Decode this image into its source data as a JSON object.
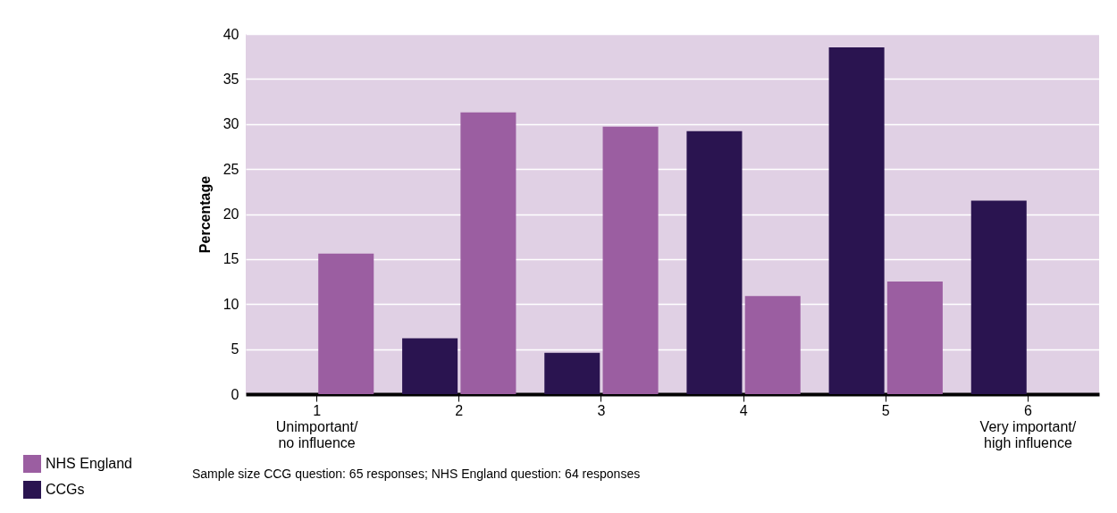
{
  "chart_data": {
    "type": "bar",
    "ylabel": "Percentage",
    "categories": [
      "1\nUnimportant/\nno influence",
      "2",
      "3",
      "4",
      "5",
      "6\nVery important/\nhigh influence"
    ],
    "series": [
      {
        "name": "CCGs",
        "color": "#2a1450",
        "values": [
          null,
          6.2,
          4.6,
          29.2,
          38.5,
          21.5
        ]
      },
      {
        "name": "NHS England",
        "color": "#9b5ea1",
        "values": [
          15.6,
          31.3,
          29.7,
          10.9,
          12.5,
          null
        ]
      }
    ],
    "ylim": [
      0,
      40
    ],
    "yticks": [
      0,
      5,
      10,
      15,
      20,
      25,
      30,
      35,
      40
    ],
    "grid": "y",
    "legend": "bottom left",
    "annotations": [
      "Sample size  CCG question: 65 responses; NHS England question: 64 responses"
    ]
  }
}
